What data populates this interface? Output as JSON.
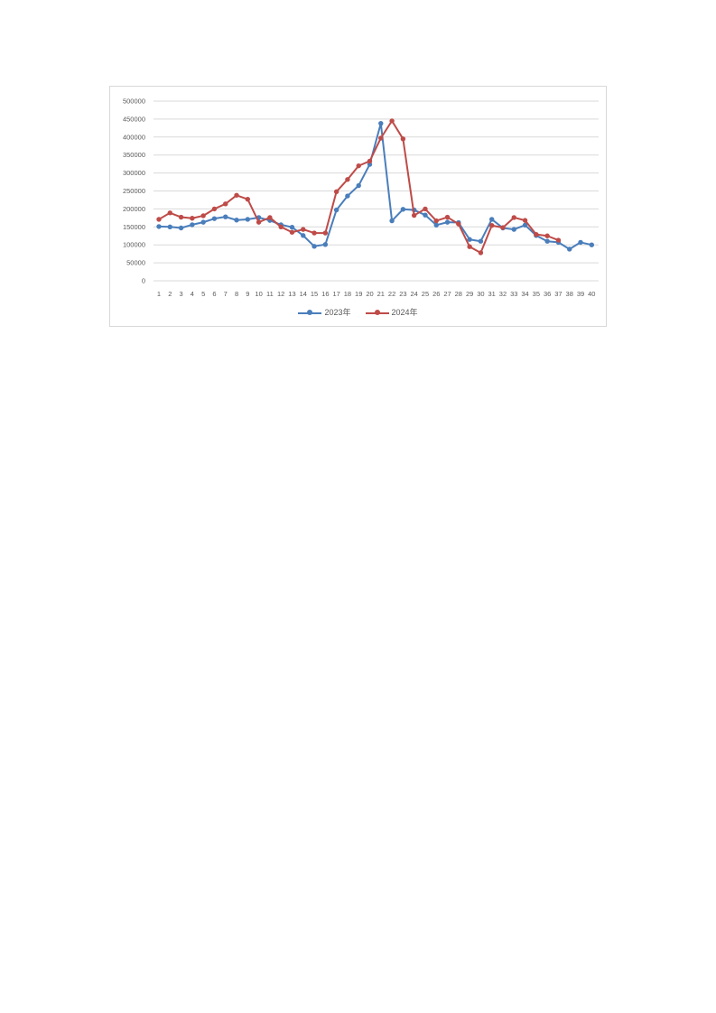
{
  "page": {
    "background_color": "#ffffff"
  },
  "chart_data": {
    "type": "line",
    "title": "",
    "xlabel": "",
    "ylabel": "",
    "categories": [
      "1",
      "2",
      "3",
      "4",
      "5",
      "6",
      "7",
      "8",
      "9",
      "10",
      "11",
      "12",
      "13",
      "14",
      "15",
      "16",
      "17",
      "18",
      "19",
      "20",
      "21",
      "22",
      "23",
      "24",
      "25",
      "26",
      "27",
      "28",
      "29",
      "30",
      "31",
      "32",
      "33",
      "34",
      "35",
      "36",
      "37",
      "38",
      "39",
      "40"
    ],
    "series": [
      {
        "name": "2023年",
        "color": "#4a7ebb",
        "values": [
          151000,
          150000,
          147000,
          156000,
          163000,
          173000,
          178000,
          169000,
          171000,
          176000,
          168000,
          156000,
          149000,
          126000,
          96000,
          101000,
          197000,
          236000,
          265000,
          324000,
          438000,
          167000,
          199000,
          197000,
          183000,
          155000,
          163000,
          162000,
          115000,
          110000,
          171000,
          147000,
          143000,
          155000,
          126000,
          110000,
          107000,
          88000,
          107000,
          100000
        ]
      },
      {
        "name": "2024年",
        "color": "#be4b48",
        "values": [
          171000,
          189000,
          177000,
          174000,
          181000,
          200000,
          214000,
          238000,
          227000,
          163000,
          176000,
          150000,
          135000,
          143000,
          133000,
          133000,
          248000,
          282000,
          320000,
          333000,
          397000,
          445000,
          395000,
          182000,
          200000,
          167000,
          177000,
          158000,
          95000,
          78000,
          154000,
          148000,
          176000,
          168000,
          129000,
          125000,
          113000,
          null,
          null,
          null
        ]
      }
    ],
    "ylim": [
      0,
      500000
    ],
    "ytick_step": 50000,
    "ytick_labels": [
      "0",
      "50000",
      "100000",
      "150000",
      "200000",
      "250000",
      "300000",
      "350000",
      "400000",
      "450000",
      "500000"
    ],
    "grid": "horizontal",
    "gridline_color": "#d9d9d9",
    "axis_text_color": "#595959",
    "legend_position": "bottom"
  }
}
